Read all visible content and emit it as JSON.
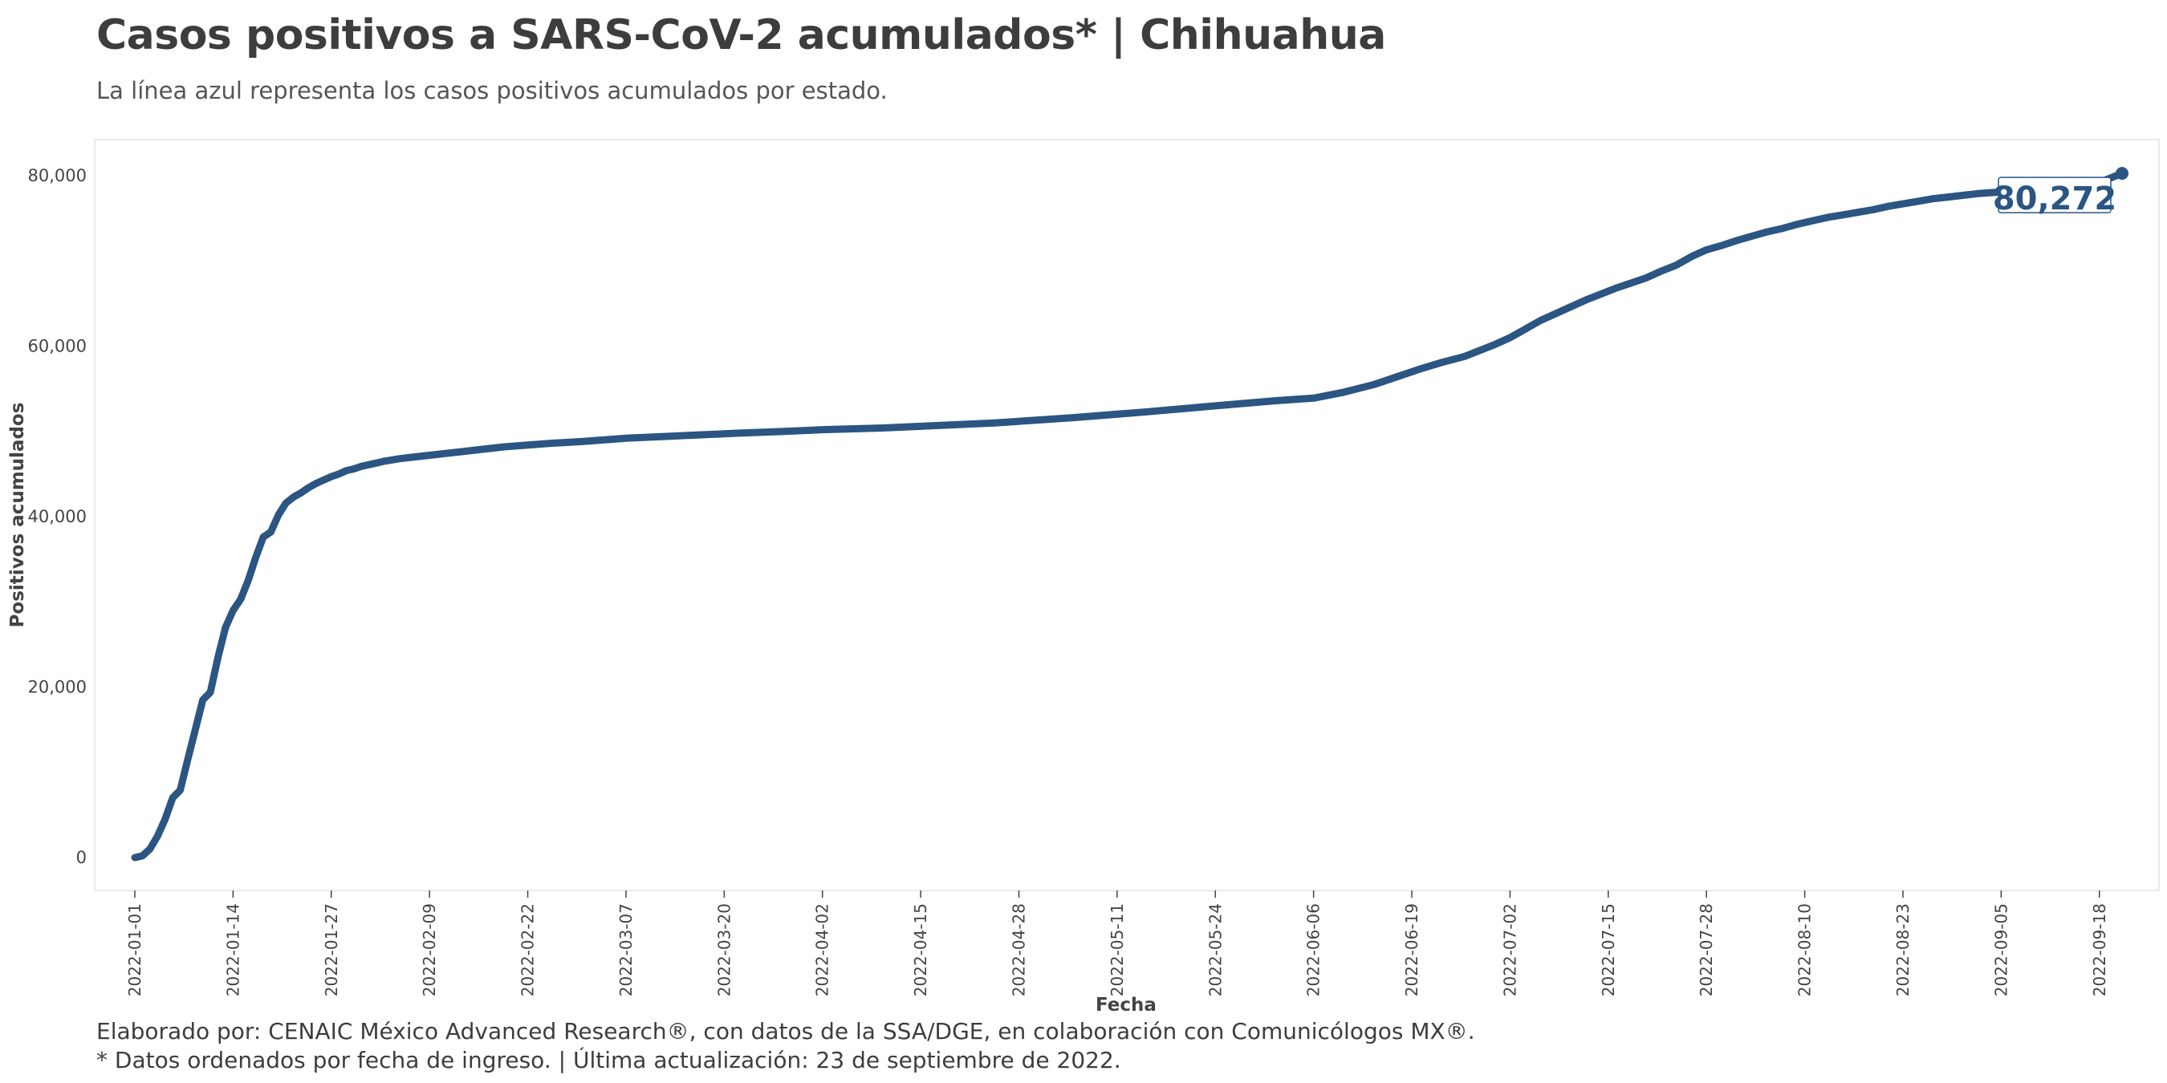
{
  "title": "Casos positivos a SARS-CoV-2 acumulados* | Chihuahua",
  "subtitle": "La línea azul representa los casos positivos acumulados por estado.",
  "caption": {
    "line1": "Elaborado por: CENAIC México Advanced Research®, con datos de la SSA/DGE, en colaboración con Comunicólogos MX®.",
    "line2": "* Datos ordenados por fecha de ingreso. | Última actualización: 23 de septiembre de 2022."
  },
  "colors": {
    "line": "#2b5582",
    "panel_border": "#e4e4e4",
    "background": "#ffffff"
  },
  "chart_data": {
    "type": "line",
    "xlabel": "Fecha",
    "ylabel": "Positivos acumulados",
    "xlim": [
      "2022-01-01",
      "2022-09-21"
    ],
    "ylim": [
      0,
      80000
    ],
    "x_ticks": [
      "2022-01-01",
      "2022-01-14",
      "2022-01-27",
      "2022-02-09",
      "2022-02-22",
      "2022-03-07",
      "2022-03-20",
      "2022-04-02",
      "2022-04-15",
      "2022-04-28",
      "2022-05-11",
      "2022-05-24",
      "2022-06-06",
      "2022-06-19",
      "2022-07-02",
      "2022-07-15",
      "2022-07-28",
      "2022-08-10",
      "2022-08-23",
      "2022-09-05",
      "2022-09-18"
    ],
    "y_ticks": [
      0,
      20000,
      40000,
      60000,
      80000
    ],
    "y_tick_labels": [
      "0",
      "20,000",
      "40,000",
      "60,000",
      "80,000"
    ],
    "end_label": "80,272",
    "grid": false,
    "series": [
      {
        "x": [
          "2022-01-01",
          "2022-01-02",
          "2022-01-03",
          "2022-01-04",
          "2022-01-05",
          "2022-01-06",
          "2022-01-07",
          "2022-01-08",
          "2022-01-09",
          "2022-01-10",
          "2022-01-11",
          "2022-01-12",
          "2022-01-13",
          "2022-01-14",
          "2022-01-15",
          "2022-01-16",
          "2022-01-17",
          "2022-01-18",
          "2022-01-19",
          "2022-01-20",
          "2022-01-21",
          "2022-01-22",
          "2022-01-23",
          "2022-01-24",
          "2022-01-25",
          "2022-01-26",
          "2022-01-27",
          "2022-01-28",
          "2022-01-29",
          "2022-01-30",
          "2022-01-31",
          "2022-02-01",
          "2022-02-02",
          "2022-02-03",
          "2022-02-05",
          "2022-02-07",
          "2022-02-09",
          "2022-02-11",
          "2022-02-13",
          "2022-02-15",
          "2022-02-17",
          "2022-02-19",
          "2022-02-22",
          "2022-02-25",
          "2022-03-01",
          "2022-03-04",
          "2022-03-07",
          "2022-03-12",
          "2022-03-17",
          "2022-03-22",
          "2022-03-28",
          "2022-04-02",
          "2022-04-10",
          "2022-04-15",
          "2022-04-25",
          "2022-05-05",
          "2022-05-15",
          "2022-05-24",
          "2022-06-01",
          "2022-06-06",
          "2022-06-10",
          "2022-06-14",
          "2022-06-17",
          "2022-06-20",
          "2022-06-23",
          "2022-06-26",
          "2022-06-28",
          "2022-06-30",
          "2022-07-02",
          "2022-07-04",
          "2022-07-06",
          "2022-07-08",
          "2022-07-10",
          "2022-07-12",
          "2022-07-14",
          "2022-07-16",
          "2022-07-18",
          "2022-07-20",
          "2022-07-22",
          "2022-07-24",
          "2022-07-26",
          "2022-07-28",
          "2022-07-30",
          "2022-08-01",
          "2022-08-03",
          "2022-08-05",
          "2022-08-07",
          "2022-08-09",
          "2022-08-11",
          "2022-08-13",
          "2022-08-15",
          "2022-08-17",
          "2022-08-19",
          "2022-08-21",
          "2022-08-23",
          "2022-08-25",
          "2022-08-27",
          "2022-08-29",
          "2022-08-31",
          "2022-09-02",
          "2022-09-05",
          "2022-09-09",
          "2022-09-14",
          "2022-09-18",
          "2022-09-21"
        ],
        "y": [
          0,
          200,
          1000,
          2500,
          4500,
          7000,
          7900,
          11500,
          15000,
          18500,
          19400,
          23500,
          27000,
          29000,
          30300,
          32500,
          35200,
          37600,
          38200,
          40200,
          41600,
          42300,
          42800,
          43400,
          43900,
          44300,
          44700,
          45000,
          45400,
          45600,
          45900,
          46100,
          46300,
          46500,
          46800,
          47000,
          47200,
          47400,
          47600,
          47800,
          48000,
          48200,
          48400,
          48600,
          48800,
          49000,
          49200,
          49400,
          49600,
          49800,
          50000,
          50200,
          50400,
          50600,
          51000,
          51600,
          52300,
          53000,
          53600,
          53900,
          54600,
          55500,
          56400,
          57300,
          58100,
          58800,
          59500,
          60200,
          61000,
          62000,
          63000,
          63800,
          64600,
          65400,
          66100,
          66800,
          67400,
          68000,
          68800,
          69500,
          70500,
          71300,
          71800,
          72400,
          72900,
          73400,
          73800,
          74300,
          74700,
          75100,
          75400,
          75700,
          76000,
          76400,
          76700,
          77000,
          77300,
          77500,
          77700,
          77900,
          78100,
          78400,
          78800,
          79200,
          80272
        ]
      }
    ]
  }
}
